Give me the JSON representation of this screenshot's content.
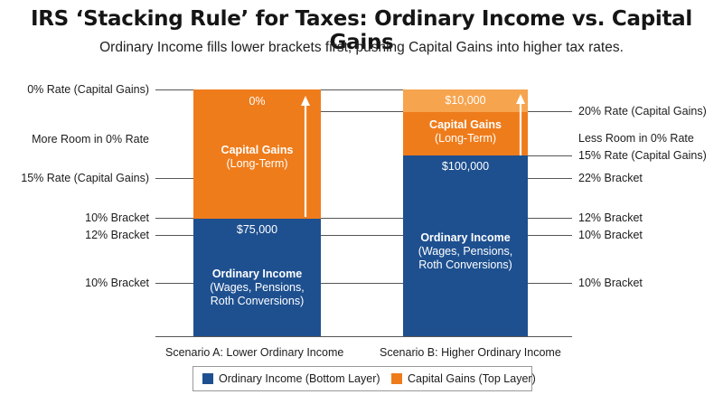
{
  "title": "IRS ‘Stacking Rule’ for Taxes: Ordinary Income vs. Capital Gains",
  "subtitle": "Ordinary Income fills lower brackets first, pushing Capital Gains into higher tax rates.",
  "left_labels": [
    "0% Rate (Capital Gains)",
    "More Room in 0% Rate",
    "15% Rate (Capital Gains)",
    "10% Bracket",
    "12% Bracket",
    "10% Bracket"
  ],
  "right_labels": [
    "20% Rate (Capital Gains)",
    "Less Room in 0% Rate",
    "15% Rate (Capital Gains)",
    "22% Bracket",
    "12% Bracket",
    "10% Bracket",
    "10% Bracket"
  ],
  "scenario_a": {
    "label": "Scenario A: Lower Ordinary Income",
    "cg_rate": "0%",
    "cg_head": "Capital Gains",
    "cg_sub": "(Long-Term)",
    "oi_amount": "$75,000",
    "oi_head": "Ordinary Income",
    "oi_sub1": "(Wages, Pensions,",
    "oi_sub2": "Roth Conversions)"
  },
  "scenario_b": {
    "label": "Scenario B: Higher Ordinary Income",
    "cg_top_amount": "$10,000",
    "cg_head": "Capital Gains",
    "cg_sub": "(Long-Term)",
    "oi_amount": "$100,000",
    "oi_head": "Ordinary Income",
    "oi_sub1": "(Wages, Pensions,",
    "oi_sub2": "Roth Conversions)"
  },
  "legend": {
    "oi": "Ordinary Income (Bottom Layer)",
    "cg": "Capital Gains (Top Layer)"
  },
  "colors": {
    "ordinary_income": "#1e5090",
    "capital_gains": "#ef7c1b",
    "capital_gains_top": "#f6a44e"
  }
}
